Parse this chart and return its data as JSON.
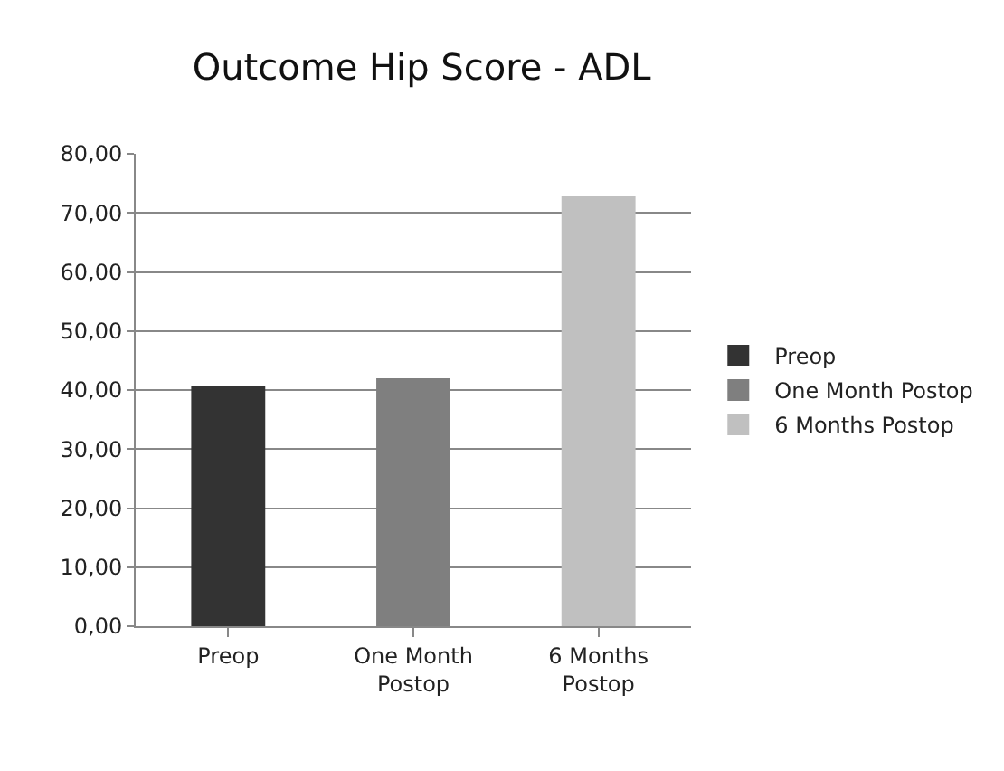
{
  "chart_data": {
    "type": "bar",
    "title": "Outcome Hip Score - ADL",
    "categories": [
      "Preop",
      "One Month Postop",
      "6 Months Postop"
    ],
    "series": [
      {
        "name": "Preop",
        "color": "#333333",
        "values": [
          40.7,
          null,
          null
        ]
      },
      {
        "name": "One Month Postop",
        "color": "#7f7f7f",
        "values": [
          null,
          42.0,
          null
        ]
      },
      {
        "name": "6 Months Postop",
        "color": "#c0c0c0",
        "values": [
          null,
          null,
          72.8
        ]
      }
    ],
    "ylim": [
      0,
      80
    ],
    "yticks": [
      {
        "value": 0,
        "label": "0,00"
      },
      {
        "value": 10,
        "label": "10,00"
      },
      {
        "value": 20,
        "label": "20,00"
      },
      {
        "value": 30,
        "label": "30,00"
      },
      {
        "value": 40,
        "label": "40,00"
      },
      {
        "value": 50,
        "label": "50,00"
      },
      {
        "value": 60,
        "label": "60,00"
      },
      {
        "value": 70,
        "label": "70,00"
      },
      {
        "value": 80,
        "label": "80,00"
      }
    ],
    "grid": "y",
    "legend": "right"
  }
}
